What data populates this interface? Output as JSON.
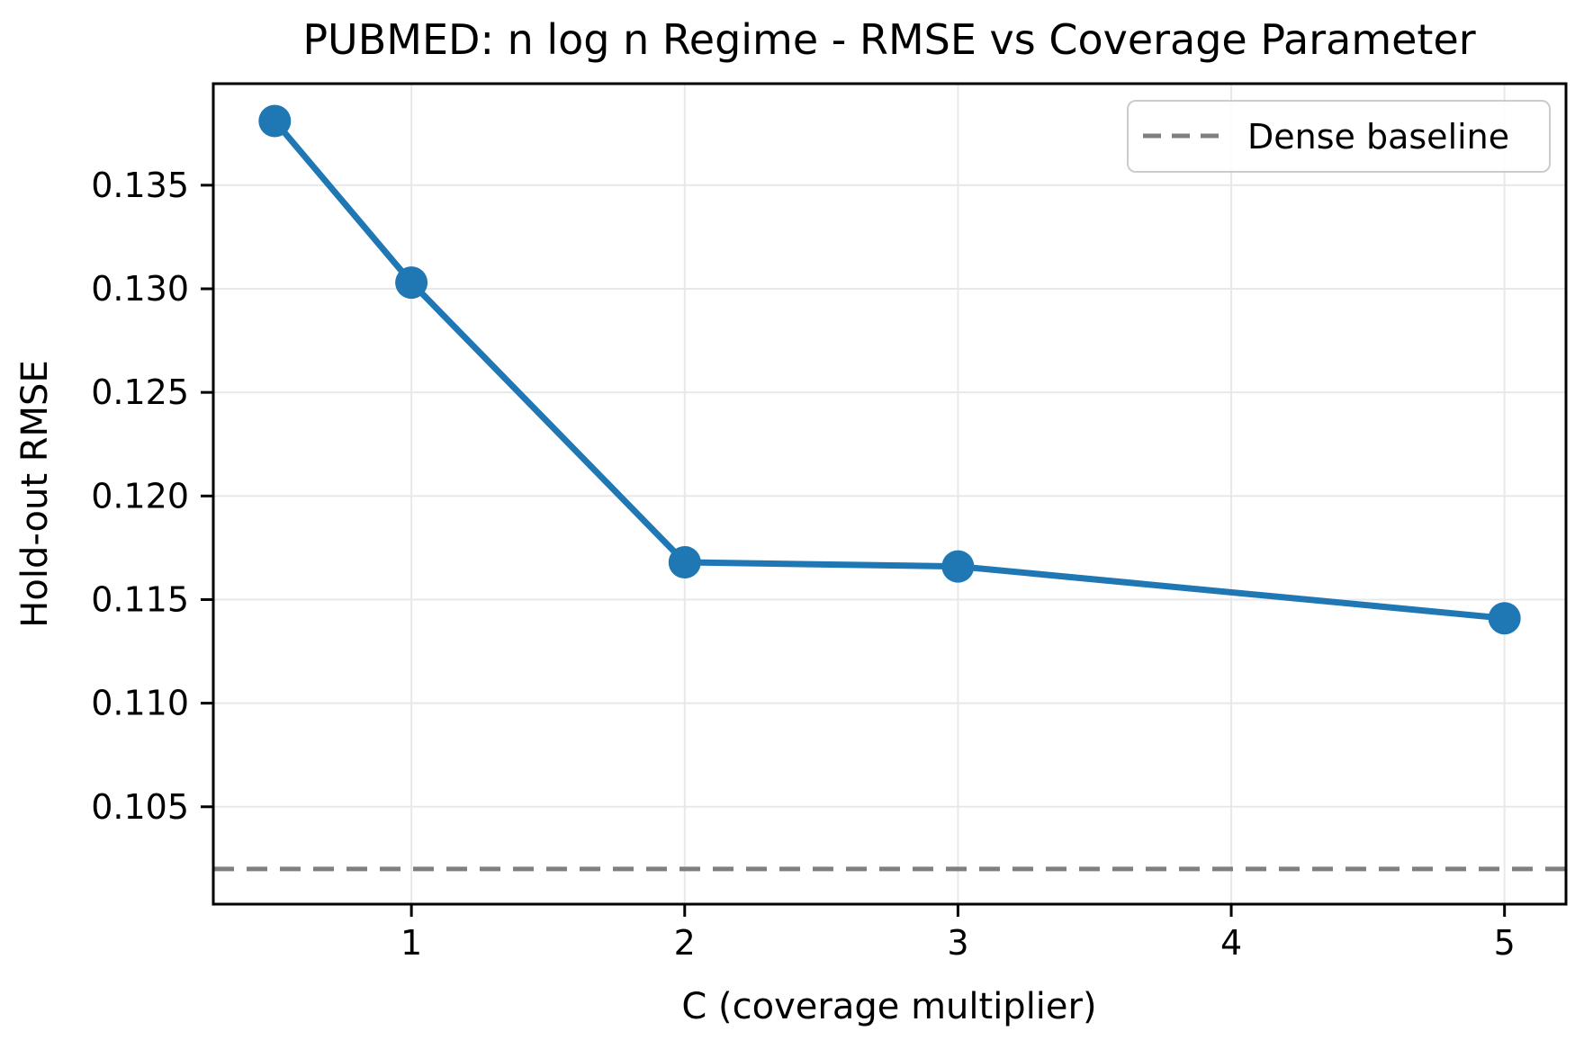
{
  "chart_data": {
    "type": "line",
    "title": "PUBMED: n log n Regime - RMSE vs Coverage Parameter",
    "xlabel": "C (coverage multiplier)",
    "ylabel": "Hold-out RMSE",
    "series": [
      {
        "x": [
          0.5,
          1,
          2,
          3,
          5
        ],
        "y": [
          0.1381,
          0.1303,
          0.1168,
          0.1166,
          0.1141
        ],
        "color": "#1f77b4",
        "marker": "circle"
      }
    ],
    "baseline": {
      "label": "Dense baseline",
      "value": 0.102,
      "color": "#7f7f7f",
      "style": "dashed"
    },
    "xlim": [
      0.275,
      5.225
    ],
    "ylim": [
      0.1003,
      0.1399
    ],
    "xticks": [
      {
        "value": 1,
        "label": "1"
      },
      {
        "value": 2,
        "label": "2"
      },
      {
        "value": 3,
        "label": "3"
      },
      {
        "value": 4,
        "label": "4"
      },
      {
        "value": 5,
        "label": "5"
      }
    ],
    "yticks": [
      {
        "value": 0.105,
        "label": "0.105"
      },
      {
        "value": 0.11,
        "label": "0.110"
      },
      {
        "value": 0.115,
        "label": "0.115"
      },
      {
        "value": 0.12,
        "label": "0.120"
      },
      {
        "value": 0.125,
        "label": "0.125"
      },
      {
        "value": 0.13,
        "label": "0.130"
      },
      {
        "value": 0.135,
        "label": "0.135"
      }
    ],
    "grid": true,
    "legend": {
      "position": "upper right",
      "entries": [
        {
          "label": "Dense baseline",
          "color": "#7f7f7f",
          "style": "dashed"
        }
      ]
    },
    "colors": {
      "line": "#1f77b4",
      "baseline": "#7f7f7f",
      "grid": "#e8e8e8",
      "spine": "#000000",
      "legend_border": "#cccccc"
    }
  }
}
